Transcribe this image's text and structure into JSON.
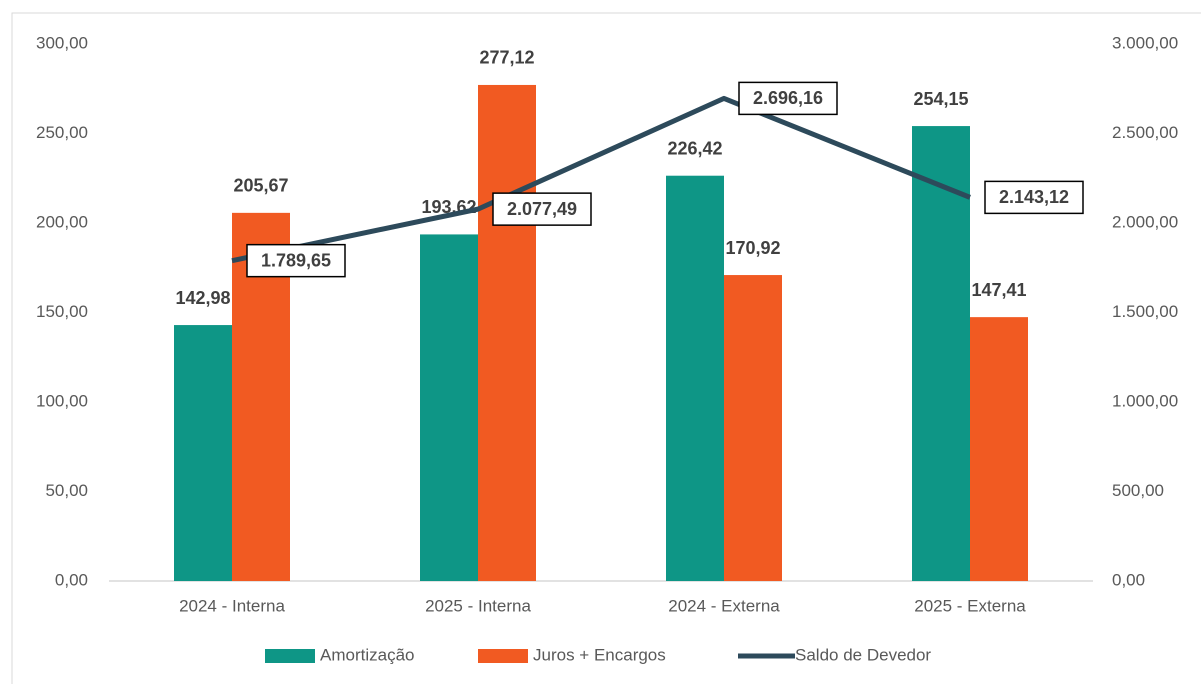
{
  "chart_data": {
    "type": "bar",
    "categories": [
      "2024 - Interna",
      "2025 - Interna",
      "2024 - Externa",
      "2025 - Externa"
    ],
    "series": [
      {
        "name": "Amortização",
        "color": "#0e9686",
        "type": "bar",
        "axis": "y",
        "values": [
          142.98,
          193.62,
          226.42,
          254.15
        ],
        "value_labels": [
          "142,98",
          "193,62",
          "226,42",
          "254,15"
        ]
      },
      {
        "name": "Juros + Encargos",
        "color": "#f15a22",
        "type": "bar",
        "axis": "y",
        "values": [
          205.67,
          277.12,
          170.92,
          147.41
        ],
        "value_labels": [
          "205,67",
          "277,12",
          "170,92",
          "147,41"
        ]
      },
      {
        "name": "Saldo de Devedor",
        "color": "#2d4a5b",
        "type": "line",
        "axis": "y2",
        "values": [
          1789.65,
          2077.49,
          2696.16,
          2143.12
        ],
        "value_labels": [
          "1.789,65",
          "2.077,49",
          "2.696,16",
          "2.143,12"
        ]
      }
    ],
    "ylim": [
      0,
      300
    ],
    "yticks": [
      {
        "value": 0,
        "label": "0,00"
      },
      {
        "value": 50,
        "label": "50,00"
      },
      {
        "value": 100,
        "label": "100,00"
      },
      {
        "value": 150,
        "label": "150,00"
      },
      {
        "value": 200,
        "label": "200,00"
      },
      {
        "value": 250,
        "label": "250,00"
      },
      {
        "value": 300,
        "label": "300,00"
      }
    ],
    "y2lim": [
      0,
      3000
    ],
    "y2ticks": [
      {
        "value": 0,
        "label": "0,00"
      },
      {
        "value": 500,
        "label": "500,00"
      },
      {
        "value": 1000,
        "label": "1.000,00"
      },
      {
        "value": 1500,
        "label": "1.500,00"
      },
      {
        "value": 2000,
        "label": "2.000,00"
      },
      {
        "value": 2500,
        "label": "2.500,00"
      },
      {
        "value": 3000,
        "label": "3.000,00"
      }
    ],
    "grid": false,
    "legend": "bottom"
  }
}
